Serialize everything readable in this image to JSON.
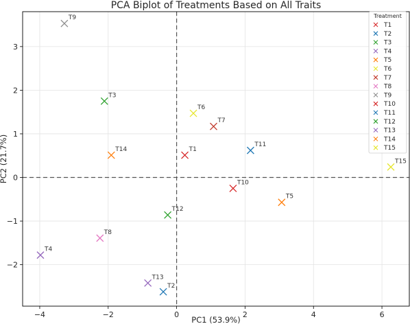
{
  "chart_data": {
    "type": "scatter",
    "title": "PCA Biplot of Treatments Based on All Traits",
    "xlabel": "PC1 (53.9%)",
    "ylabel": "PC2 (21.7%)",
    "xlim": [
      -4.5,
      6.8
    ],
    "ylim": [
      -2.95,
      3.8
    ],
    "xticks": [
      -4,
      -2,
      0,
      2,
      4,
      6
    ],
    "yticks": [
      -2,
      -1,
      0,
      1,
      2,
      3
    ],
    "grid": true,
    "reference_lines": {
      "x": 0,
      "y": 0,
      "style": "dashed"
    },
    "marker": "x",
    "legend": {
      "title": "Treatment",
      "placement": "top-right"
    },
    "points": [
      {
        "name": "T1",
        "x": 0.24,
        "y": 0.51,
        "color": "#d62728"
      },
      {
        "name": "T2",
        "x": -0.39,
        "y": -2.62,
        "color": "#1f77b4"
      },
      {
        "name": "T3",
        "x": -2.11,
        "y": 1.75,
        "color": "#2ca02c"
      },
      {
        "name": "T4",
        "x": -3.98,
        "y": -1.78,
        "color": "#9467bd"
      },
      {
        "name": "T5",
        "x": 3.07,
        "y": -0.57,
        "color": "#ff7f0e"
      },
      {
        "name": "T6",
        "x": 0.49,
        "y": 1.47,
        "color": "#e6e62e"
      },
      {
        "name": "T7",
        "x": 1.08,
        "y": 1.17,
        "color": "#c0392b"
      },
      {
        "name": "T8",
        "x": -2.24,
        "y": -1.39,
        "color": "#e377c2"
      },
      {
        "name": "T9",
        "x": -3.28,
        "y": 3.53,
        "color": "#8c8c8c"
      },
      {
        "name": "T10",
        "x": 1.65,
        "y": -0.25,
        "color": "#d62728"
      },
      {
        "name": "T11",
        "x": 2.16,
        "y": 0.62,
        "color": "#1f77b4"
      },
      {
        "name": "T12",
        "x": -0.26,
        "y": -0.86,
        "color": "#2ca02c"
      },
      {
        "name": "T13",
        "x": -0.84,
        "y": -2.42,
        "color": "#9467bd"
      },
      {
        "name": "T14",
        "x": -1.91,
        "y": 0.51,
        "color": "#ff7f0e"
      },
      {
        "name": "T15",
        "x": 6.26,
        "y": 0.24,
        "color": "#e6e62e"
      }
    ]
  }
}
